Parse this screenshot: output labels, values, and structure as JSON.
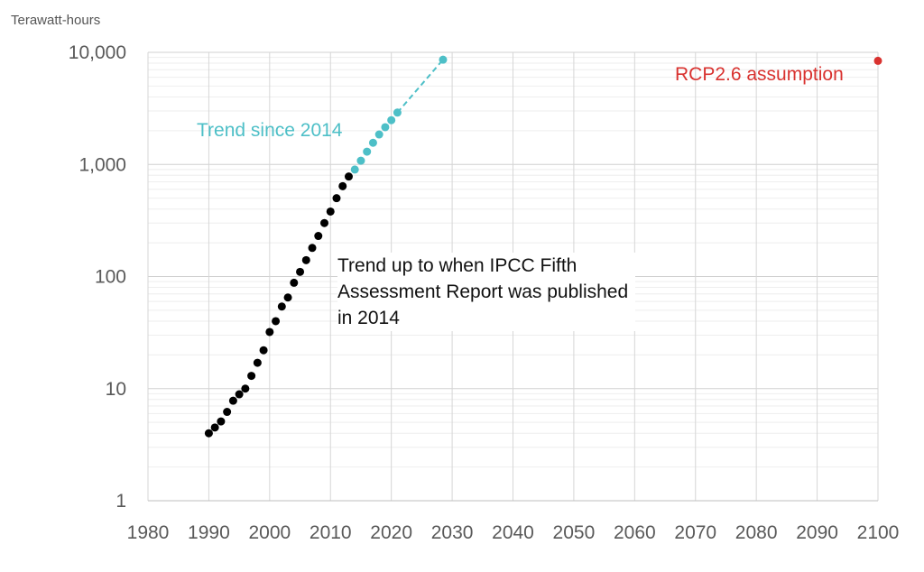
{
  "chart_data": {
    "type": "scatter",
    "ylabel": "Terawatt-hours",
    "yscale": "log",
    "ylim": [
      1,
      10000
    ],
    "xlim": [
      1980,
      2100
    ],
    "x_ticks": [
      "1980",
      "1990",
      "2000",
      "2010",
      "2020",
      "2030",
      "2040",
      "2050",
      "2060",
      "2070",
      "2080",
      "2090",
      "2100"
    ],
    "y_ticks": [
      {
        "value": 1,
        "label": "1"
      },
      {
        "value": 10,
        "label": "10"
      },
      {
        "value": 100,
        "label": "100"
      },
      {
        "value": 1000,
        "label": "1,000"
      },
      {
        "value": 10000,
        "label": "10,000"
      }
    ],
    "grid": true,
    "series": [
      {
        "color": "#000000",
        "x": [
          1990,
          1991,
          1992,
          1993,
          1994,
          1995,
          1996,
          1997,
          1998,
          1999,
          2000,
          2001,
          2002,
          2003,
          2004,
          2005,
          2006,
          2007,
          2008,
          2009,
          2010,
          2011,
          2012,
          2013
        ],
        "y": [
          4,
          4.5,
          5.1,
          6.2,
          7.8,
          8.9,
          10,
          13,
          17,
          22,
          32,
          40,
          54,
          65,
          88,
          110,
          140,
          180,
          230,
          300,
          380,
          500,
          640,
          780
        ]
      },
      {
        "color": "#4dbfc7",
        "x": [
          2014,
          2015,
          2016,
          2017,
          2018,
          2019,
          2020,
          2021
        ],
        "y": [
          900,
          1080,
          1300,
          1560,
          1850,
          2150,
          2480,
          2900
        ]
      },
      {
        "color": "#4dbfc7",
        "style": "dashed",
        "x": [
          2021,
          2028.5
        ],
        "y": [
          2900,
          8600
        ]
      },
      {
        "color": "#d9322f",
        "x": [
          2100
        ],
        "y": [
          8400
        ]
      }
    ],
    "annotations": {
      "black": "Trend up to when IPCC Fifth Assessment Report was published in 2014",
      "teal": "Trend since 2014",
      "red": "RCP2.6 assumption"
    }
  }
}
